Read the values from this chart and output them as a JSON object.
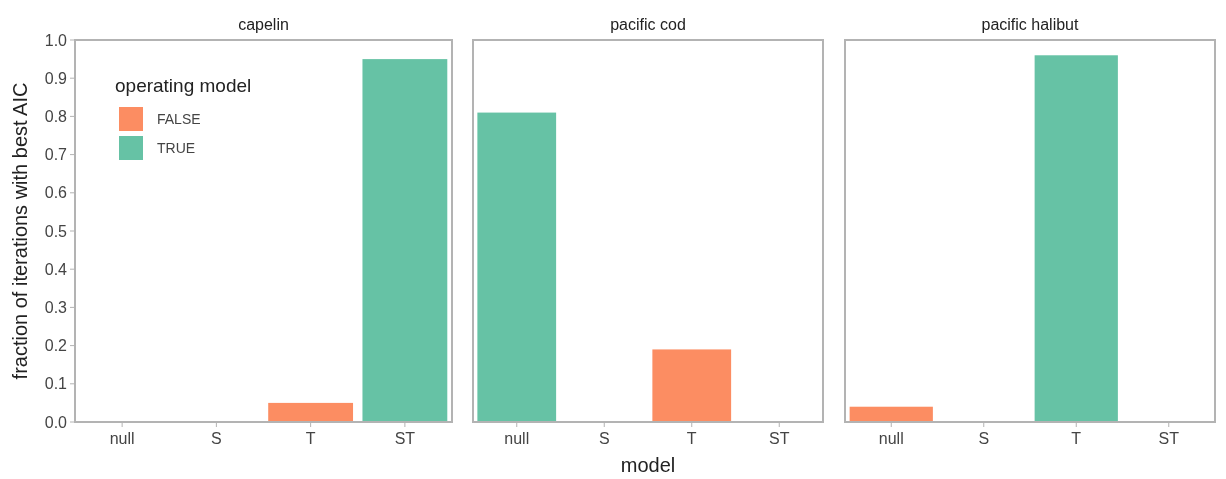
{
  "chart_data": [
    {
      "type": "bar",
      "title": "capelin",
      "ylabel": "fraction of iterations with best AIC",
      "categories": [
        "null",
        "S",
        "T",
        "ST"
      ],
      "series": [
        {
          "name": "FALSE",
          "color": "#fc8d62",
          "values": [
            null,
            null,
            0.05,
            null
          ]
        },
        {
          "name": "TRUE",
          "color": "#66c2a5",
          "values": [
            null,
            null,
            null,
            0.95
          ]
        }
      ],
      "ylim": [
        0,
        1
      ],
      "yticks": [
        {
          "value": 0,
          "label": "0.0"
        },
        0.1,
        0.2,
        0.3,
        0.4,
        0.5,
        0.6,
        0.7,
        0.8,
        0.9,
        {
          "value": 1,
          "label": "1.0"
        }
      ],
      "legend": "top left",
      "legend_title": "operating model"
    },
    {
      "type": "bar",
      "title": "pacific cod",
      "xlabel": "model",
      "categories": [
        "null",
        "S",
        "T",
        "ST"
      ],
      "series": [
        {
          "color": "#fc8d62",
          "values": [
            null,
            null,
            0.19,
            null
          ]
        },
        {
          "color": "#66c2a5",
          "values": [
            0.81,
            null,
            null,
            null
          ]
        }
      ],
      "ylim": [
        0,
        1
      ],
      "tick_labels": "x"
    },
    {
      "type": "bar",
      "title": "pacific halibut",
      "categories": [
        "null",
        "S",
        "T",
        "ST"
      ],
      "series": [
        {
          "color": "#fc8d62",
          "values": [
            0.04,
            null,
            null,
            null
          ]
        },
        {
          "color": "#66c2a5",
          "values": [
            null,
            null,
            0.96,
            null
          ]
        }
      ],
      "ylim": [
        0,
        1
      ],
      "tick_labels": "x"
    }
  ]
}
